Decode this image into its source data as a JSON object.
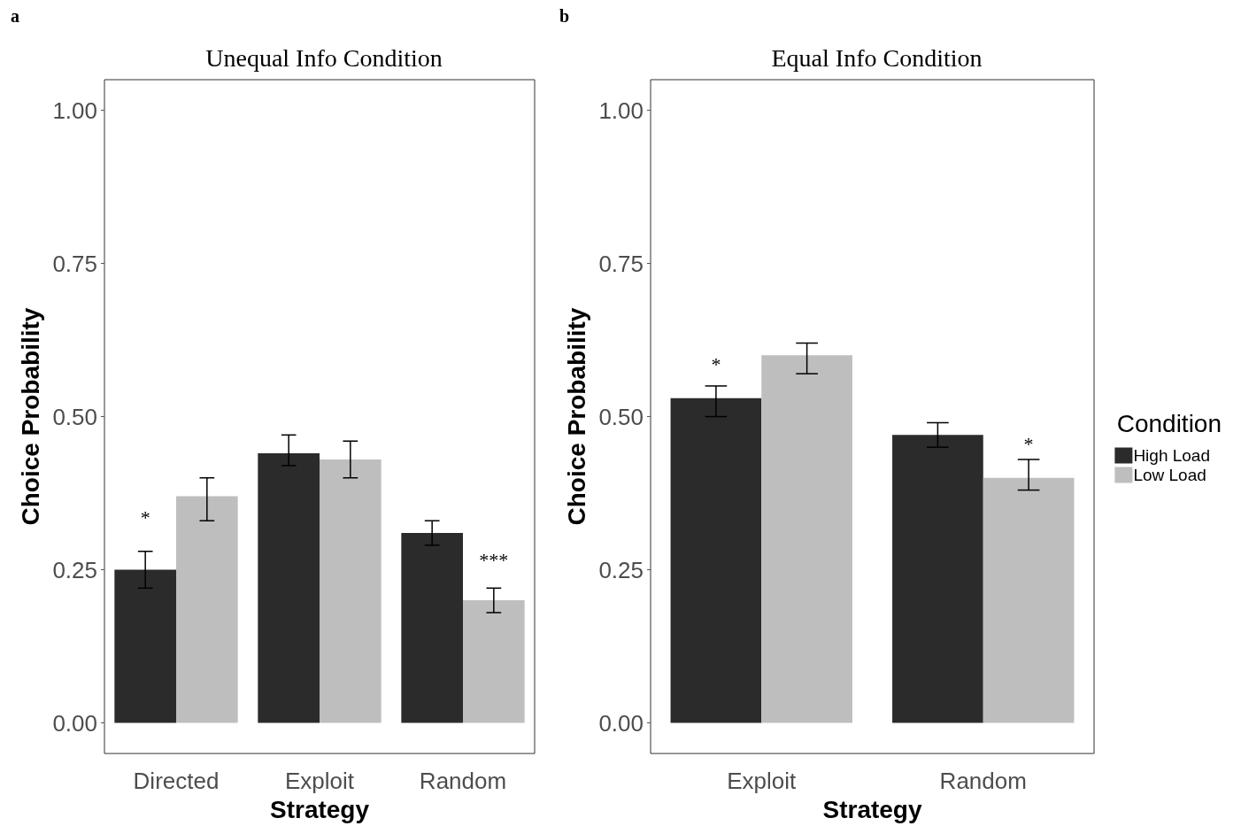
{
  "chart_data": [
    {
      "type": "bar",
      "title": "Unequal Info Condition",
      "xlabel": "Strategy",
      "ylabel": "Choice Probability",
      "categories": [
        "Directed",
        "Exploit",
        "Random"
      ],
      "series": [
        {
          "color": "#2b2b2b",
          "values": [
            0.25,
            0.44,
            0.31
          ],
          "errors": [
            [
              0.22,
              0.28
            ],
            [
              0.42,
              0.47
            ],
            [
              0.29,
              0.33
            ]
          ]
        },
        {
          "color": "#bebebe",
          "values": [
            0.37,
            0.43,
            0.2
          ],
          "errors": [
            [
              0.33,
              0.4
            ],
            [
              0.4,
              0.46
            ],
            [
              0.18,
              0.22
            ]
          ]
        }
      ],
      "ylim": [
        -0.05,
        1.05
      ],
      "yticks": [
        {
          "value": 0,
          "label": "0.00"
        },
        {
          "value": 0.25,
          "label": "0.25"
        },
        {
          "value": 0.5,
          "label": "0.50"
        },
        {
          "value": 0.75,
          "label": "0.75"
        },
        {
          "value": 1,
          "label": "1.00"
        }
      ],
      "legend": false,
      "annotations": [
        "a",
        {
          "text": "*",
          "x": "Directed",
          "y": 0.32
        },
        {
          "text": "***",
          "x": "Random",
          "y": 0.25
        }
      ]
    },
    {
      "type": "bar",
      "title": "Equal Info Condition",
      "xlabel": "Strategy",
      "ylabel": "Choice Probability",
      "categories": [
        "Exploit",
        "Random"
      ],
      "series": [
        {
          "name": "High Load",
          "color": "#2b2b2b",
          "values": [
            0.53,
            0.47
          ],
          "errors": [
            [
              0.5,
              0.55
            ],
            [
              0.45,
              0.49
            ]
          ]
        },
        {
          "name": "Low Load",
          "color": "#bebebe",
          "values": [
            0.6,
            0.4
          ],
          "errors": [
            [
              0.57,
              0.62
            ],
            [
              0.38,
              0.43
            ]
          ]
        }
      ],
      "ylim": [
        -0.05,
        1.05
      ],
      "yticks": [
        {
          "value": 0,
          "label": "0.00"
        },
        {
          "value": 0.25,
          "label": "0.25"
        },
        {
          "value": 0.5,
          "label": "0.50"
        },
        {
          "value": 0.75,
          "label": "0.75"
        },
        {
          "value": 1,
          "label": "1.00"
        }
      ],
      "legend": "right",
      "legend_title": "Condition",
      "annotations": [
        "b",
        {
          "text": "*",
          "x": "Exploit",
          "y": 0.57
        },
        {
          "text": "*",
          "x": "Random",
          "y": 0.44
        }
      ]
    }
  ]
}
